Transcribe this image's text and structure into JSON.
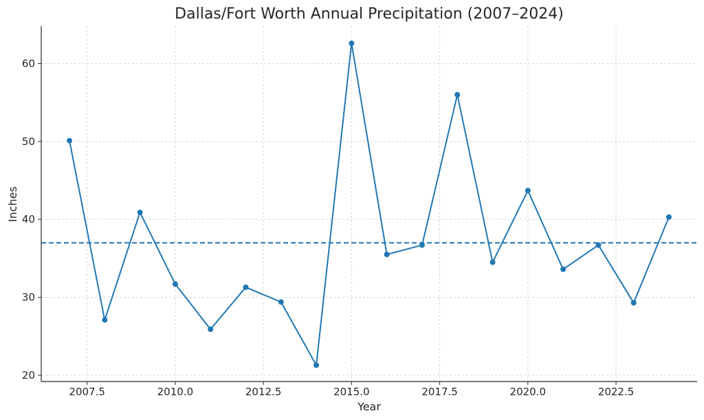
{
  "chart_data": {
    "type": "line",
    "title": "Dallas/Fort Worth Annual Precipitation (2007–2024)",
    "xlabel": "Year",
    "ylabel": "Inches",
    "xlim": [
      2006.2,
      2024.8
    ],
    "ylim": [
      19.2,
      64.8
    ],
    "xticks": [
      2007.5,
      2010.0,
      2012.5,
      2015.0,
      2017.5,
      2020.0,
      2022.5
    ],
    "xtick_labels": [
      "2007.5",
      "2010.0",
      "2012.5",
      "2015.0",
      "2017.5",
      "2020.0",
      "2022.5"
    ],
    "yticks": [
      20,
      30,
      40,
      50,
      60
    ],
    "ytick_labels": [
      "20",
      "30",
      "40",
      "50",
      "60"
    ],
    "grid": true,
    "series": [
      {
        "x": [
          2007,
          2008,
          2009,
          2010,
          2011,
          2012,
          2013,
          2014,
          2015,
          2016,
          2017,
          2018,
          2019,
          2020,
          2021,
          2022,
          2023,
          2024
        ],
        "values": [
          50.1,
          27.1,
          40.9,
          31.7,
          25.9,
          31.3,
          29.4,
          21.3,
          62.6,
          35.5,
          36.7,
          56.0,
          34.5,
          43.7,
          33.6,
          36.7,
          29.3,
          40.3
        ],
        "color": "#1f77b4"
      }
    ],
    "reference_lines": [
      {
        "y": 37.0,
        "style": "dashed",
        "color": "#1f77b4"
      }
    ]
  }
}
